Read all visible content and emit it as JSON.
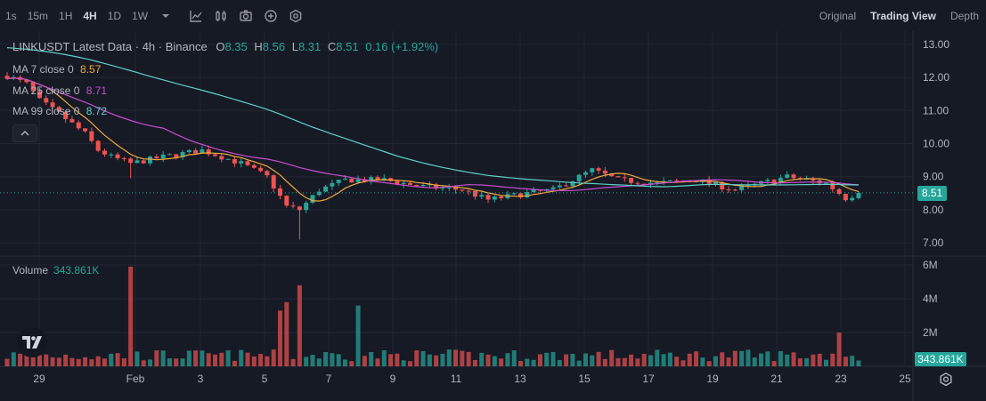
{
  "toolbar": {
    "intervals": [
      "1s",
      "15m",
      "1H",
      "4H",
      "1D",
      "1W"
    ],
    "active_interval": "4H",
    "views": [
      "Original",
      "Trading View",
      "Depth"
    ],
    "active_view": "Trading View"
  },
  "legend": {
    "symbol": "LINKUSDT Latest Data · 4h · Binance",
    "open_label": "O",
    "open": "8.35",
    "high_label": "H",
    "high": "8.56",
    "low_label": "L",
    "low": "8.31",
    "close_label": "C",
    "close": "8.51",
    "change": "0.16 (+1.92%)"
  },
  "moving_averages": [
    {
      "label": "MA 7 close 0",
      "value": "8.57",
      "color": "#f0a93b"
    },
    {
      "label": "MA 25 close 0",
      "value": "8.71",
      "color": "#c84fd0"
    },
    {
      "label": "MA 99 close 0",
      "value": "8.72",
      "color": "#5fd0c8"
    }
  ],
  "volume": {
    "label": "Volume",
    "value": "343.861K",
    "badge": "343.861K"
  },
  "price_axis": {
    "ticks": [
      "13.00",
      "12.00",
      "11.00",
      "10.00",
      "9.00",
      "8.00",
      "7.00"
    ],
    "current": "8.51"
  },
  "volume_axis": {
    "ticks": [
      "6M",
      "4M",
      "2M"
    ]
  },
  "time_axis": {
    "ticks": [
      "29",
      "Feb",
      "3",
      "5",
      "7",
      "9",
      "11",
      "13",
      "15",
      "17",
      "19",
      "21",
      "23",
      "25"
    ]
  },
  "colors": {
    "up": "#26a69a",
    "down": "#ef5350",
    "background": "#161a25"
  },
  "chart_data": {
    "type": "candlestick",
    "price_range": [
      6.6,
      13.4
    ],
    "volume_range": [
      0,
      6000000
    ],
    "price_keypoints": [
      {
        "t": 0,
        "p": 12.05
      },
      {
        "t": 3,
        "p": 11.8
      },
      {
        "t": 5,
        "p": 11.3
      },
      {
        "t": 8,
        "p": 10.9
      },
      {
        "t": 12,
        "p": 10.3
      },
      {
        "t": 14,
        "p": 9.8
      },
      {
        "t": 16,
        "p": 9.6
      },
      {
        "t": 19,
        "p": 9.4
      },
      {
        "t": 24,
        "p": 9.6
      },
      {
        "t": 30,
        "p": 9.8
      },
      {
        "t": 36,
        "p": 9.4
      },
      {
        "t": 40,
        "p": 9.0
      },
      {
        "t": 43,
        "p": 8.1
      },
      {
        "t": 45,
        "p": 8.0
      },
      {
        "t": 48,
        "p": 8.6
      },
      {
        "t": 52,
        "p": 8.9
      },
      {
        "t": 58,
        "p": 8.9
      },
      {
        "t": 64,
        "p": 8.7
      },
      {
        "t": 70,
        "p": 8.6
      },
      {
        "t": 74,
        "p": 8.3
      },
      {
        "t": 80,
        "p": 8.5
      },
      {
        "t": 84,
        "p": 8.6
      },
      {
        "t": 90,
        "p": 9.2
      },
      {
        "t": 94,
        "p": 8.9
      },
      {
        "t": 100,
        "p": 8.8
      },
      {
        "t": 106,
        "p": 8.9
      },
      {
        "t": 112,
        "p": 8.6
      },
      {
        "t": 116,
        "p": 8.8
      },
      {
        "t": 120,
        "p": 9.0
      },
      {
        "t": 126,
        "p": 8.8
      },
      {
        "t": 129,
        "p": 8.35
      },
      {
        "t": 131,
        "p": 8.51
      }
    ],
    "volume_spikes": [
      {
        "t": 19,
        "v": 5900000
      },
      {
        "t": 43,
        "v": 3800000
      },
      {
        "t": 45,
        "v": 4800000
      },
      {
        "t": 42,
        "v": 3300000
      },
      {
        "t": 54,
        "v": 3600000
      },
      {
        "t": 128,
        "v": 2000000
      }
    ]
  }
}
